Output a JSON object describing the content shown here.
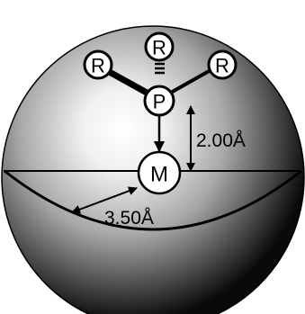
{
  "diagram": {
    "atoms": {
      "r_left": "R",
      "r_top": "R",
      "r_right": "R",
      "phosphorus": "P",
      "metal": "M"
    },
    "distances": {
      "p_to_m": "2.00Å",
      "cone_radius": "3.50Å"
    }
  }
}
